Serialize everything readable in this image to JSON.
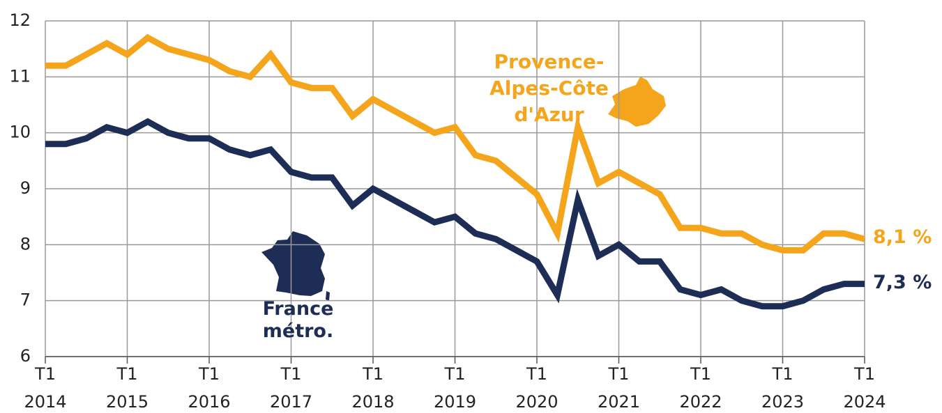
{
  "chart_data": {
    "type": "line",
    "categories": [
      "T1 2014",
      null,
      null,
      null,
      "T1 2015",
      null,
      null,
      null,
      "T1 2016",
      null,
      null,
      null,
      "T1 2017",
      null,
      null,
      null,
      "T1 2018",
      null,
      null,
      null,
      "T1 2019",
      null,
      null,
      null,
      "T1 2020",
      null,
      null,
      null,
      "T1 2021",
      null,
      null,
      null,
      "T1 2022",
      null,
      null,
      null,
      "T1 2023",
      null,
      null,
      null,
      "T1 2024"
    ],
    "series": [
      {
        "name": "Provence-Alpes-Côte d'Azur",
        "color": "#f5a51c",
        "values": [
          11.2,
          11.2,
          11.4,
          11.6,
          11.4,
          11.7,
          11.5,
          11.4,
          11.3,
          11.1,
          11.0,
          11.4,
          10.9,
          10.8,
          10.8,
          10.3,
          10.6,
          10.4,
          10.2,
          10.0,
          10.1,
          9.6,
          9.5,
          9.2,
          8.9,
          8.2,
          10.1,
          9.1,
          9.3,
          9.1,
          8.9,
          8.3,
          8.3,
          8.2,
          8.2,
          8.0,
          7.9,
          7.9,
          8.2,
          8.2,
          8.1
        ],
        "value_labels": [
          null,
          null,
          null,
          null,
          null,
          null,
          null,
          null,
          null,
          null,
          null,
          null,
          null,
          null,
          null,
          null,
          null,
          null,
          null,
          null,
          null,
          null,
          null,
          null,
          null,
          null,
          null,
          null,
          null,
          null,
          null,
          null,
          null,
          null,
          null,
          null,
          null,
          null,
          null,
          null,
          "8,1 %"
        ]
      },
      {
        "name": "France métro.",
        "color": "#1d2d55",
        "values": [
          9.8,
          9.8,
          9.9,
          10.1,
          10.0,
          10.2,
          10.0,
          9.9,
          9.9,
          9.7,
          9.6,
          9.7,
          9.3,
          9.2,
          9.2,
          8.7,
          9.0,
          8.8,
          8.6,
          8.4,
          8.5,
          8.2,
          8.1,
          7.9,
          7.7,
          7.1,
          8.8,
          7.8,
          8.0,
          7.7,
          7.7,
          7.2,
          7.1,
          7.2,
          7.0,
          6.9,
          6.9,
          7.0,
          7.2,
          7.3,
          7.3
        ],
        "value_labels": [
          null,
          null,
          null,
          null,
          null,
          null,
          null,
          null,
          null,
          null,
          null,
          null,
          null,
          null,
          null,
          null,
          null,
          null,
          null,
          null,
          null,
          null,
          null,
          null,
          null,
          null,
          null,
          null,
          null,
          null,
          null,
          null,
          null,
          null,
          null,
          null,
          null,
          null,
          null,
          null,
          "7,3 %"
        ]
      }
    ],
    "ylim": [
      6,
      12
    ],
    "yticks": [
      6,
      7,
      8,
      9,
      10,
      11,
      12
    ],
    "grid": true
  }
}
